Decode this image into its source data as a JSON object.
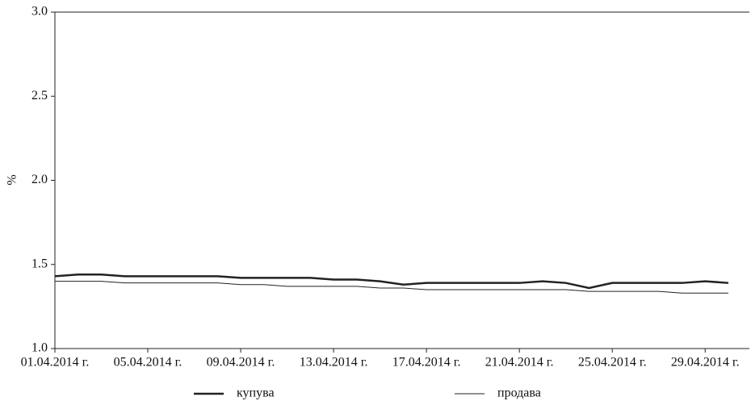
{
  "chart_data": {
    "type": "line",
    "y_label": "%",
    "categories": [
      "01.04.2014 г.",
      null,
      null,
      null,
      "05.04.2014 г.",
      null,
      null,
      null,
      "09.04.2014 г.",
      null,
      null,
      null,
      "13.04.2014 г.",
      null,
      null,
      null,
      "17.04.2014 г.",
      null,
      null,
      null,
      "21.04.2014 г.",
      null,
      null,
      null,
      "25.04.2014 г.",
      null,
      null,
      null,
      "29.04.2014 г.",
      null
    ],
    "series": [
      {
        "name": "купува",
        "color": "#222222",
        "line_width": 2.5,
        "values": [
          1.43,
          1.44,
          1.44,
          1.43,
          1.43,
          1.43,
          1.43,
          1.43,
          1.42,
          1.42,
          1.42,
          1.42,
          1.41,
          1.41,
          1.4,
          1.38,
          1.39,
          1.39,
          1.39,
          1.39,
          1.39,
          1.4,
          1.39,
          1.36,
          1.39,
          1.39,
          1.39,
          1.39,
          1.4,
          1.39
        ]
      },
      {
        "name": "продава",
        "color": "#222222",
        "line_width": 1,
        "values": [
          1.4,
          1.4,
          1.4,
          1.39,
          1.39,
          1.39,
          1.39,
          1.39,
          1.38,
          1.38,
          1.37,
          1.37,
          1.37,
          1.37,
          1.36,
          1.36,
          1.35,
          1.35,
          1.35,
          1.35,
          1.35,
          1.35,
          1.35,
          1.34,
          1.34,
          1.34,
          1.34,
          1.33,
          1.33,
          1.33
        ]
      }
    ],
    "ylim": [
      1.0,
      3.0
    ],
    "yticks": [
      {
        "value": 1.0,
        "label": "1.0"
      },
      1.5,
      {
        "value": 2.0,
        "label": "2.0"
      },
      2.5,
      {
        "value": 3.0,
        "label": "3.0"
      }
    ],
    "grid": false,
    "legend": "bottom"
  }
}
